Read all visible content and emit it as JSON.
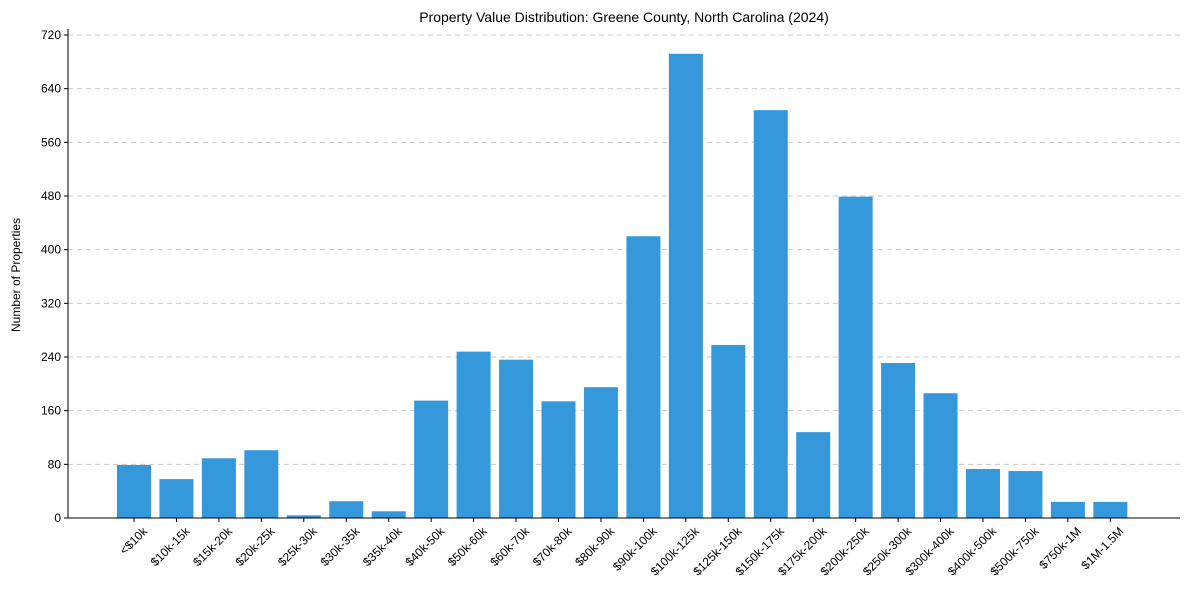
{
  "chart_data": {
    "type": "bar",
    "title": "Property Value Distribution: Greene County, North Carolina (2024)",
    "xlabel": "",
    "ylabel": "Number of Properties",
    "ylim": [
      0,
      720
    ],
    "yticks": [
      0,
      80,
      160,
      240,
      320,
      400,
      480,
      560,
      640,
      720
    ],
    "grid": "horizontal dashed",
    "bar_color": "#3498db",
    "categories": [
      "<$10k",
      "$10k-15k",
      "$15k-20k",
      "$20k-25k",
      "$25k-30k",
      "$30k-35k",
      "$35k-40k",
      "$40k-50k",
      "$50k-60k",
      "$60k-70k",
      "$70k-80k",
      "$80k-90k",
      "$90k-100k",
      "$100k-125k",
      "$125k-150k",
      "$150k-175k",
      "$175k-200k",
      "$200k-250k",
      "$250k-300k",
      "$300k-400k",
      "$400k-500k",
      "$500k-750k",
      "$750k-1M",
      "$1M-1.5M"
    ],
    "values": [
      79,
      58,
      89,
      101,
      4,
      25,
      10,
      175,
      248,
      236,
      174,
      195,
      420,
      692,
      258,
      608,
      128,
      479,
      231,
      186,
      73,
      70,
      24,
      24
    ]
  }
}
